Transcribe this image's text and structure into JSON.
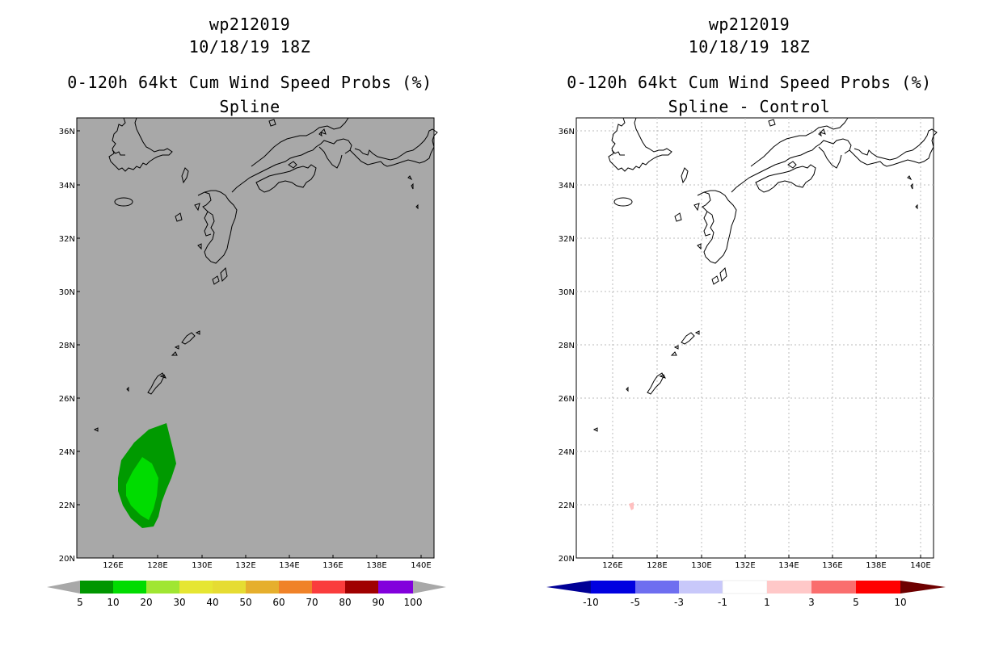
{
  "colors": {
    "ocean_left": "#a8a8a8",
    "green_dark": "#009a00",
    "green_light": "#00dc00",
    "pink_light": "#ffc0c0"
  },
  "lon_ticks": [
    "126E",
    "128E",
    "130E",
    "132E",
    "134E",
    "136E",
    "138E",
    "140E"
  ],
  "lat_ticks": [
    "36N",
    "34N",
    "32N",
    "30N",
    "28N",
    "26N",
    "24N",
    "22N",
    "20N"
  ],
  "left": {
    "title_line1": "wp212019",
    "title_line2": "10/18/19 18Z",
    "title_line3": "0-120h 64kt Cum Wind Speed Probs (%)",
    "title_line4": "Spline",
    "colorbar_labels": [
      "5",
      "10",
      "20",
      "30",
      "40",
      "50",
      "60",
      "70",
      "80",
      "90",
      "100"
    ],
    "colorbar_colors": [
      "#009600",
      "#00dc00",
      "#a0e632",
      "#e6e632",
      "#e6dc32",
      "#e6af2d",
      "#f08228",
      "#fa3c3c",
      "#a00000",
      "#8200dc"
    ]
  },
  "right": {
    "title_line1": "wp212019",
    "title_line2": "10/18/19 18Z",
    "title_line3": "0-120h 64kt Cum Wind Speed Probs (%)",
    "title_line4": "Spline - Control",
    "colorbar_labels": [
      "-10",
      "-5",
      "-3",
      "-1",
      "1",
      "3",
      "5",
      "10"
    ],
    "colorbar_colors": [
      "#0000e0",
      "#6e6ef0",
      "#c8c8fa",
      "#ffffff",
      "#ffc8c8",
      "#fa6e6e",
      "#ff0000"
    ],
    "end_left": "#000096",
    "end_right": "#6e0000"
  }
}
